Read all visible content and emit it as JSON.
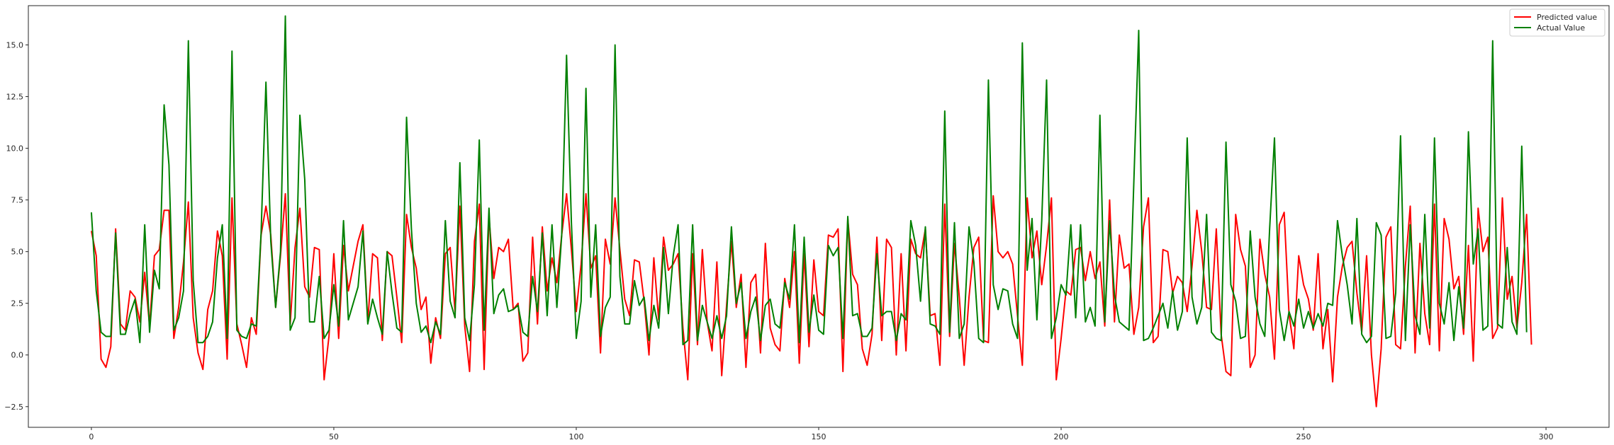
{
  "chart_data": {
    "type": "line",
    "title": "",
    "xlabel": "",
    "ylabel": "",
    "xlim": [
      -13,
      313
    ],
    "ylim": [
      -3.5,
      16.9
    ],
    "xticks": [
      0,
      50,
      100,
      150,
      200,
      250,
      300
    ],
    "xtick_labels": [
      "0",
      "50",
      "100",
      "150",
      "200",
      "250",
      "300"
    ],
    "yticks": [
      -2.5,
      0.0,
      2.5,
      5.0,
      7.5,
      10.0,
      12.5,
      15.0
    ],
    "ytick_labels": [
      "−2.5",
      "0.0",
      "2.5",
      "5.0",
      "7.5",
      "10.0",
      "12.5",
      "15.0"
    ],
    "grid": false,
    "legend_position": "top-right",
    "series": [
      {
        "name": "Predicted value",
        "color": "#ff0000",
        "values": [
          6.0,
          4.8,
          -0.2,
          -0.6,
          0.4,
          6.1,
          1.5,
          1.2,
          3.1,
          2.8,
          1.6,
          4.0,
          1.4,
          4.8,
          5.1,
          7.0,
          7.0,
          0.8,
          2.3,
          4.5,
          7.4,
          1.8,
          0.1,
          -0.7,
          2.2,
          3.1,
          6.0,
          4.8,
          -0.2,
          7.6,
          1.5,
          0.5,
          -0.6,
          1.8,
          1.0,
          5.8,
          7.2,
          5.8,
          2.3,
          4.8,
          7.8,
          1.5,
          5.2,
          7.1,
          3.3,
          2.8,
          5.2,
          5.1,
          -1.2,
          0.9,
          4.9,
          0.8,
          5.3,
          3.1,
          4.3,
          5.5,
          6.3,
          1.6,
          4.9,
          4.7,
          0.7,
          5.0,
          4.8,
          2.8,
          0.6,
          6.8,
          5.2,
          4.2,
          2.2,
          2.8,
          -0.4,
          1.8,
          0.8,
          4.9,
          5.2,
          2.1,
          7.2,
          1.4,
          -0.8,
          5.5,
          7.3,
          -0.7,
          6.7,
          3.7,
          5.2,
          5.0,
          5.6,
          2.2,
          2.5,
          -0.3,
          0.1,
          5.7,
          1.5,
          6.2,
          3.1,
          4.7,
          3.5,
          5.8,
          7.8,
          5.1,
          2.1,
          4.4,
          7.8,
          4.2,
          4.8,
          0.1,
          5.6,
          4.4,
          7.6,
          5.1,
          2.7,
          1.9,
          4.6,
          4.5,
          2.6,
          0.0,
          4.7,
          1.7,
          5.7,
          4.1,
          4.4,
          4.9,
          1.3,
          -1.2,
          4.9,
          0.5,
          5.1,
          1.6,
          0.2,
          4.5,
          -1.0,
          2.4,
          5.5,
          2.3,
          3.9,
          -0.6,
          3.5,
          3.9,
          0.1,
          5.4,
          1.3,
          0.5,
          0.2,
          3.7,
          2.3,
          5.0,
          -0.4,
          4.9,
          0.4,
          4.6,
          2.1,
          1.9,
          5.8,
          5.7,
          6.1,
          -0.8,
          6.6,
          3.9,
          3.4,
          0.3,
          -0.5,
          1.0,
          5.7,
          0.7,
          5.6,
          5.2,
          0.0,
          4.9,
          0.2,
          5.6,
          4.9,
          4.7,
          6.1,
          1.9,
          2.0,
          -0.5,
          7.3,
          0.9,
          5.4,
          2.8,
          -0.5,
          2.8,
          5.2,
          5.7,
          0.7,
          0.6,
          7.7,
          5.0,
          4.7,
          5.0,
          4.4,
          1.9,
          -0.5,
          7.6,
          4.7,
          6.0,
          3.4,
          5.3,
          7.6,
          -1.2,
          0.8,
          3.1,
          2.9,
          5.1,
          5.2,
          3.6,
          5.0,
          3.7,
          4.5,
          1.4,
          7.5,
          1.6,
          5.8,
          4.2,
          4.4,
          1.0,
          2.3,
          6.2,
          7.6,
          0.6,
          0.9,
          5.1,
          5.0,
          3.0,
          3.8,
          3.5,
          2.1,
          4.3,
          7.0,
          5.0,
          2.3,
          2.2,
          6.1,
          1.0,
          -0.8,
          -1.0,
          6.8,
          5.1,
          4.3,
          -0.6,
          0.0,
          5.6,
          3.9,
          2.8,
          -0.2,
          6.3,
          6.9,
          2.0,
          0.3,
          4.8,
          3.4,
          2.7,
          1.2,
          4.9,
          0.3,
          2.2,
          -1.3,
          2.8,
          4.3,
          5.2,
          5.5,
          3.0,
          1.1,
          4.8,
          0.0,
          -2.5,
          0.3,
          5.7,
          6.2,
          0.5,
          0.3,
          4.3,
          7.2,
          0.1,
          5.4,
          2.0,
          0.5,
          7.3,
          0.2,
          6.6,
          5.6,
          3.2,
          3.8,
          1.0,
          5.3,
          -0.3,
          7.1,
          5.0,
          5.7,
          0.8,
          1.3,
          7.6,
          2.7,
          3.8,
          1.3,
          3.5,
          6.8,
          0.5
        ]
      },
      {
        "name": "Actual Value",
        "color": "#008000",
        "values": [
          6.9,
          3.1,
          1.1,
          0.9,
          0.9,
          5.9,
          1.0,
          1.0,
          2.0,
          2.7,
          0.6,
          6.3,
          1.1,
          4.1,
          3.2,
          12.1,
          9.2,
          1.2,
          1.8,
          3.1,
          15.2,
          3.6,
          0.6,
          0.6,
          0.9,
          1.6,
          4.7,
          6.3,
          0.8,
          14.7,
          1.2,
          0.9,
          0.8,
          1.5,
          1.4,
          5.9,
          13.2,
          5.5,
          2.3,
          5.0,
          16.4,
          1.2,
          1.8,
          11.6,
          8.5,
          1.6,
          1.6,
          3.8,
          0.8,
          1.2,
          3.4,
          1.4,
          6.5,
          1.7,
          2.5,
          3.3,
          6.0,
          1.5,
          2.7,
          1.8,
          1.0,
          5.0,
          3.0,
          1.3,
          1.1,
          11.5,
          6.1,
          2.5,
          1.1,
          1.4,
          0.6,
          1.6,
          1.0,
          6.5,
          2.6,
          1.8,
          9.3,
          1.8,
          0.7,
          3.4,
          10.4,
          1.2,
          7.1,
          2.0,
          2.9,
          3.2,
          2.1,
          2.2,
          2.4,
          1.1,
          0.9,
          3.8,
          2.1,
          5.9,
          1.9,
          6.3,
          2.3,
          5.8,
          14.5,
          6.4,
          0.8,
          2.6,
          12.9,
          2.8,
          6.3,
          0.9,
          2.3,
          2.8,
          15.0,
          3.8,
          1.5,
          1.5,
          3.6,
          2.4,
          2.8,
          0.7,
          2.4,
          1.3,
          5.2,
          2.0,
          4.8,
          6.3,
          0.5,
          0.7,
          6.3,
          0.7,
          2.4,
          1.6,
          0.8,
          1.9,
          0.8,
          1.9,
          6.2,
          2.5,
          3.5,
          0.8,
          2.1,
          2.8,
          0.7,
          2.4,
          2.7,
          1.5,
          1.3,
          3.5,
          2.7,
          6.3,
          0.6,
          5.7,
          1.1,
          2.9,
          1.2,
          1.0,
          5.3,
          4.8,
          5.2,
          0.8,
          6.7,
          1.9,
          2.0,
          0.9,
          0.9,
          1.3,
          4.9,
          1.9,
          2.1,
          2.1,
          0.7,
          2.0,
          1.7,
          6.5,
          5.3,
          2.6,
          6.2,
          1.5,
          1.4,
          1.0,
          11.8,
          1.1,
          6.4,
          0.8,
          1.5,
          6.2,
          4.5,
          0.8,
          0.6,
          13.3,
          3.4,
          2.2,
          3.2,
          3.1,
          1.5,
          0.8,
          15.1,
          4.1,
          6.6,
          1.7,
          6.5,
          13.3,
          0.8,
          1.8,
          3.4,
          2.9,
          6.3,
          1.8,
          6.3,
          1.6,
          2.3,
          1.4,
          11.6,
          1.6,
          6.5,
          2.9,
          1.6,
          1.4,
          1.2,
          8.4,
          15.7,
          0.7,
          0.8,
          1.3,
          1.9,
          2.5,
          1.3,
          3.1,
          1.2,
          2.1,
          10.5,
          2.8,
          1.5,
          2.3,
          6.8,
          1.1,
          0.8,
          0.7,
          10.3,
          3.4,
          2.6,
          0.8,
          0.9,
          6.0,
          2.8,
          1.5,
          0.9,
          6.1,
          10.5,
          2.2,
          0.7,
          2.1,
          1.4,
          2.7,
          1.3,
          2.1,
          1.3,
          2.0,
          1.4,
          2.5,
          2.4,
          6.5,
          4.8,
          3.4,
          1.5,
          6.6,
          1.0,
          0.6,
          0.9,
          6.4,
          5.8,
          0.8,
          0.9,
          3.0,
          10.6,
          0.7,
          6.3,
          1.9,
          1.0,
          6.8,
          1.3,
          10.5,
          2.5,
          1.5,
          3.5,
          0.7,
          3.3,
          1.3,
          10.8,
          4.4,
          6.1,
          1.2,
          1.4,
          15.2,
          1.5,
          1.3,
          5.2,
          1.6,
          1.0,
          10.1,
          1.1
        ]
      }
    ]
  }
}
